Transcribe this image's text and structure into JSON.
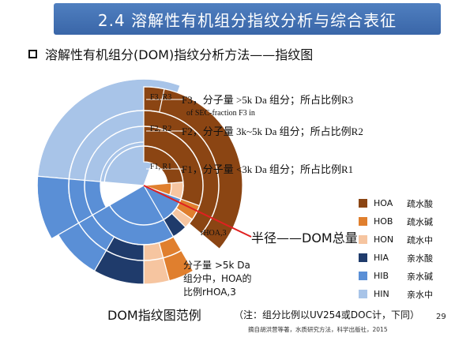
{
  "title": "2.4 溶解性有机组分指纹分析与综合表征",
  "subtitle": "溶解性有机组分(DOM)指纹分析方法——指纹图",
  "annotations": {
    "r3_tag": "F3, R3",
    "r3_text": "F3，分子量 >5k Da 组分；所占比例R3",
    "r3_sub": "of SEC-fraction F3 in",
    "r2_tag": "F2, R2",
    "r2_text": "F2，分子量 3k~5k Da 组分；所占比例R2",
    "r1_tag": "F1, R1",
    "r1_text": "F1，分子量 <3k Da 组分；所占比例R1",
    "rhoa_tag": "rHOA,3",
    "hoa_line1": "分子量 >5k Da",
    "hoa_line2": "组分中，HOA的",
    "hoa_line3": "比例rHOA,3"
  },
  "radius_label": "半径——DOM总量",
  "legend": [
    {
      "code": "HOA",
      "name": "疏水酸",
      "color": "#8b4513"
    },
    {
      "code": "HOB",
      "name": "疏水碱",
      "color": "#e07f2e"
    },
    {
      "code": "HON",
      "name": "疏水中",
      "color": "#f6c5a0"
    },
    {
      "code": "HIA",
      "name": "亲水酸",
      "color": "#1f3b6b"
    },
    {
      "code": "HIB",
      "name": "亲水碱",
      "color": "#5a8fd6"
    },
    {
      "code": "HIN",
      "name": "亲水中",
      "color": "#a8c4e8"
    }
  ],
  "bottom_title": "DOM指纹图范例",
  "bottom_note": "（注：组分比例以UV254或DOC计，下同）",
  "page_number": "29",
  "source": "摘自胡洪营等著，水质研究方法，科学出版社，2015"
}
